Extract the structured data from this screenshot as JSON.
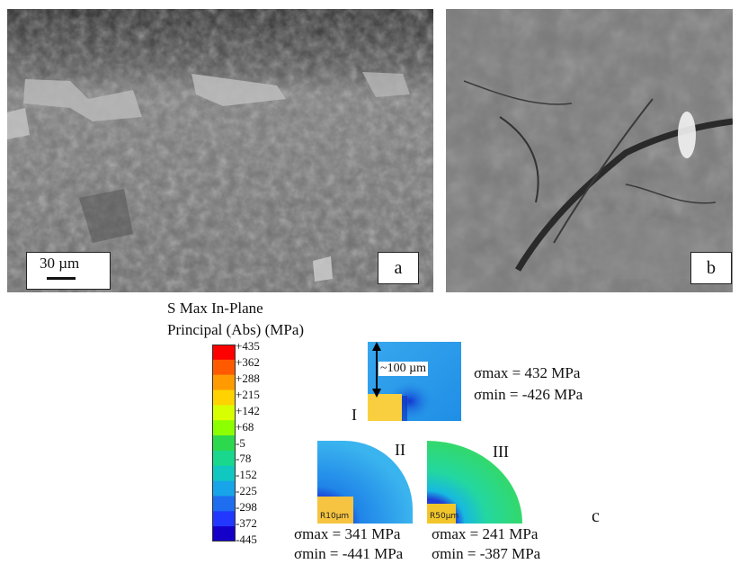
{
  "micrographs": {
    "a": {
      "label": "a",
      "scale_bar_label": "30 µm"
    },
    "b": {
      "label": "b"
    }
  },
  "colorbar": {
    "title_line1": "S Max In-Plane",
    "title_line2": "Principal (Abs) (MPa)",
    "ticks": [
      "+435",
      "+362",
      "+288",
      "+215",
      "+142",
      "+68",
      "-5",
      "-78",
      "-152",
      "-225",
      "-298",
      "-372",
      "-445"
    ],
    "colors": [
      "#ff0000",
      "#ff5a00",
      "#ff9b00",
      "#ffd200",
      "#d8ff00",
      "#8cff00",
      "#2cd84e",
      "#19d78c",
      "#10c8c0",
      "#17a4e8",
      "#1f6ef0",
      "#2238ff",
      "#1400c8"
    ]
  },
  "models": {
    "I": {
      "label": "I",
      "dimension_label": "~100 µm",
      "sigma_max": "σmax = 432 MPa",
      "sigma_min": "σmin = -426 MPa"
    },
    "II": {
      "label": "II",
      "radius_label": "R10µm",
      "sigma_max": "σmax = 341 MPa",
      "sigma_min": "σmin = -441 MPa"
    },
    "III": {
      "label": "III",
      "radius_label": "R50µm",
      "sigma_max": "σmax = 241 MPa",
      "sigma_min": "σmin = -387 MPa"
    }
  },
  "panel_c_label": "c"
}
